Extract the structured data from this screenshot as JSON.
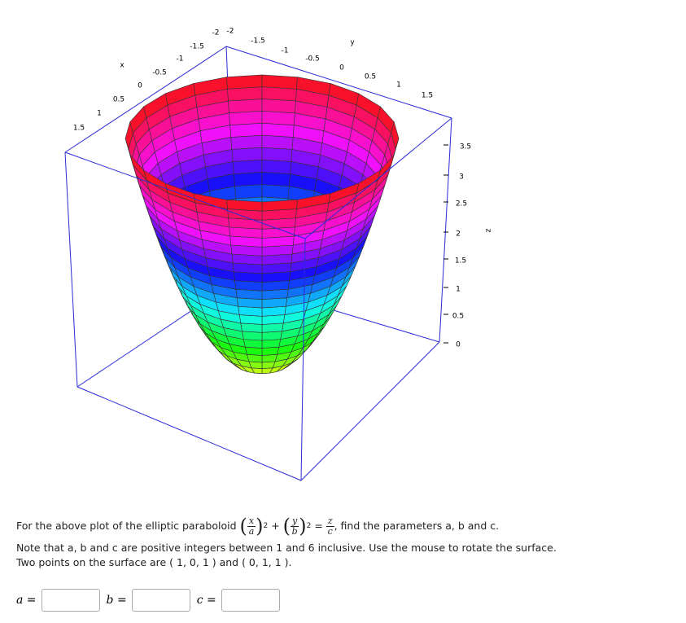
{
  "plot": {
    "x_axis": {
      "label": "x",
      "ticks": [
        "1.5",
        "1",
        "0.5",
        "0",
        "-0.5",
        "-1",
        "-1.5",
        "-2"
      ]
    },
    "y_axis": {
      "label": "y",
      "ticks": [
        "-2",
        "-1.5",
        "-1",
        "-0.5",
        "0",
        "0.5",
        "1",
        "1.5"
      ]
    },
    "z_axis": {
      "label": "z",
      "ticks": [
        "0",
        "0.5",
        "1",
        "1.5",
        "2",
        "2.5",
        "3",
        "3.5"
      ]
    }
  },
  "question": {
    "intro": "For the above plot of the elliptic paraboloid",
    "formula": {
      "x": "x",
      "a": "a",
      "y": "y",
      "b": "b",
      "z": "z",
      "c": "c",
      "exp": "2",
      "plus": "+",
      "equals": "="
    },
    "after": ", find the parameters a, b and c.",
    "note": "Note that a, b and c are positive integers between 1 and 6 inclusive. Use the mouse to rotate the surface.",
    "points": "Two points on the surface are ( 1, 0, 1 ) and ( 0, 1, 1 )."
  },
  "inputs": [
    {
      "label": "a ="
    },
    {
      "label": "b ="
    },
    {
      "label": "c ="
    }
  ]
}
